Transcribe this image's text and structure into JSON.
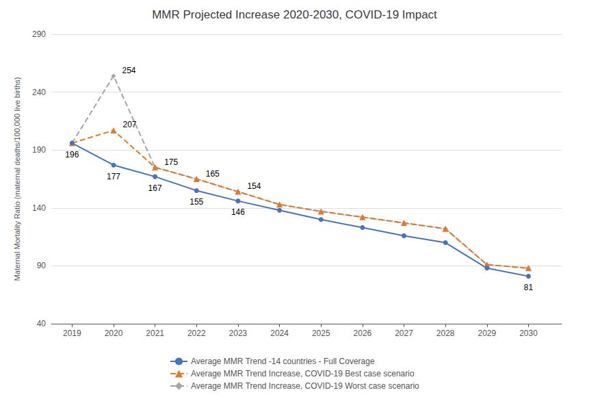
{
  "chart_data": {
    "type": "line",
    "title": "MMR Projected Increase 2020-2030, COVID-19 Impact",
    "ylabel": "Maternal Mortality Ratio (maternal deaths/100,000 live births)",
    "x": [
      2019,
      2020,
      2021,
      2022,
      2023,
      2024,
      2025,
      2026,
      2027,
      2028,
      2029,
      2030
    ],
    "series": [
      {
        "name": "Average MMR Trend -14 countries - Full Coverage",
        "color": "#4472C4",
        "marker": "circle",
        "line_style": "solid",
        "values": [
          196,
          177,
          167,
          155,
          146,
          138,
          130,
          123,
          116,
          110,
          88,
          81
        ]
      },
      {
        "name": "Average MMR Trend Increase, COVID-19 Best case scenario",
        "color": "#E87722",
        "marker": "triangle",
        "line_style": "dashed",
        "values": [
          196,
          207,
          175,
          165,
          154,
          143,
          137,
          132,
          127,
          122,
          91,
          88
        ]
      },
      {
        "name": "Average MMR Trend Increase, COVID-19 Worst case scenario",
        "color": "#A5A5A5",
        "marker": "diamond",
        "line_style": "dashed",
        "values": [
          196,
          254,
          175,
          165,
          154,
          143,
          137,
          132,
          127,
          122,
          91,
          88
        ]
      }
    ],
    "annotations": [
      {
        "series": "Average MMR Trend -14 countries - Full Coverage",
        "x": 2019,
        "y": 196,
        "text": "196"
      },
      {
        "series": "Average MMR Trend -14 countries - Full Coverage",
        "x": 2020,
        "y": 177,
        "text": "177"
      },
      {
        "series": "Average MMR Trend -14 countries - Full Coverage",
        "x": 2021,
        "y": 167,
        "text": "167"
      },
      {
        "series": "Average MMR Trend -14 countries - Full Coverage",
        "x": 2022,
        "y": 155,
        "text": "155"
      },
      {
        "series": "Average MMR Trend -14 countries - Full Coverage",
        "x": 2023,
        "y": 146,
        "text": "146"
      },
      {
        "series": "Average MMR Trend -14 countries - Full Coverage",
        "x": 2030,
        "y": 81,
        "text": "81"
      },
      {
        "series": "Average MMR Trend Increase, COVID-19 Best case scenario",
        "x": 2020,
        "y": 207,
        "text": "207"
      },
      {
        "series": "Average MMR Trend Increase, COVID-19 Best case scenario",
        "x": 2021,
        "y": 175,
        "text": "175"
      },
      {
        "series": "Average MMR Trend Increase, COVID-19 Best case scenario",
        "x": 2022,
        "y": 165,
        "text": "165"
      },
      {
        "series": "Average MMR Trend Increase, COVID-19 Best case scenario",
        "x": 2023,
        "y": 154,
        "text": "154"
      },
      {
        "series": "Average MMR Trend Increase, COVID-19 Worst case scenario",
        "x": 2020,
        "y": 254,
        "text": "254"
      }
    ],
    "xlim": [
      2018.5,
      2030.8
    ],
    "xticks": [
      2019,
      2020,
      2021,
      2022,
      2023,
      2024,
      2025,
      2026,
      2027,
      2028,
      2029,
      2030
    ],
    "ylim": [
      40,
      290
    ],
    "yticks": [
      40,
      90,
      140,
      190,
      240,
      290
    ],
    "grid": true,
    "legend": "bottom"
  }
}
